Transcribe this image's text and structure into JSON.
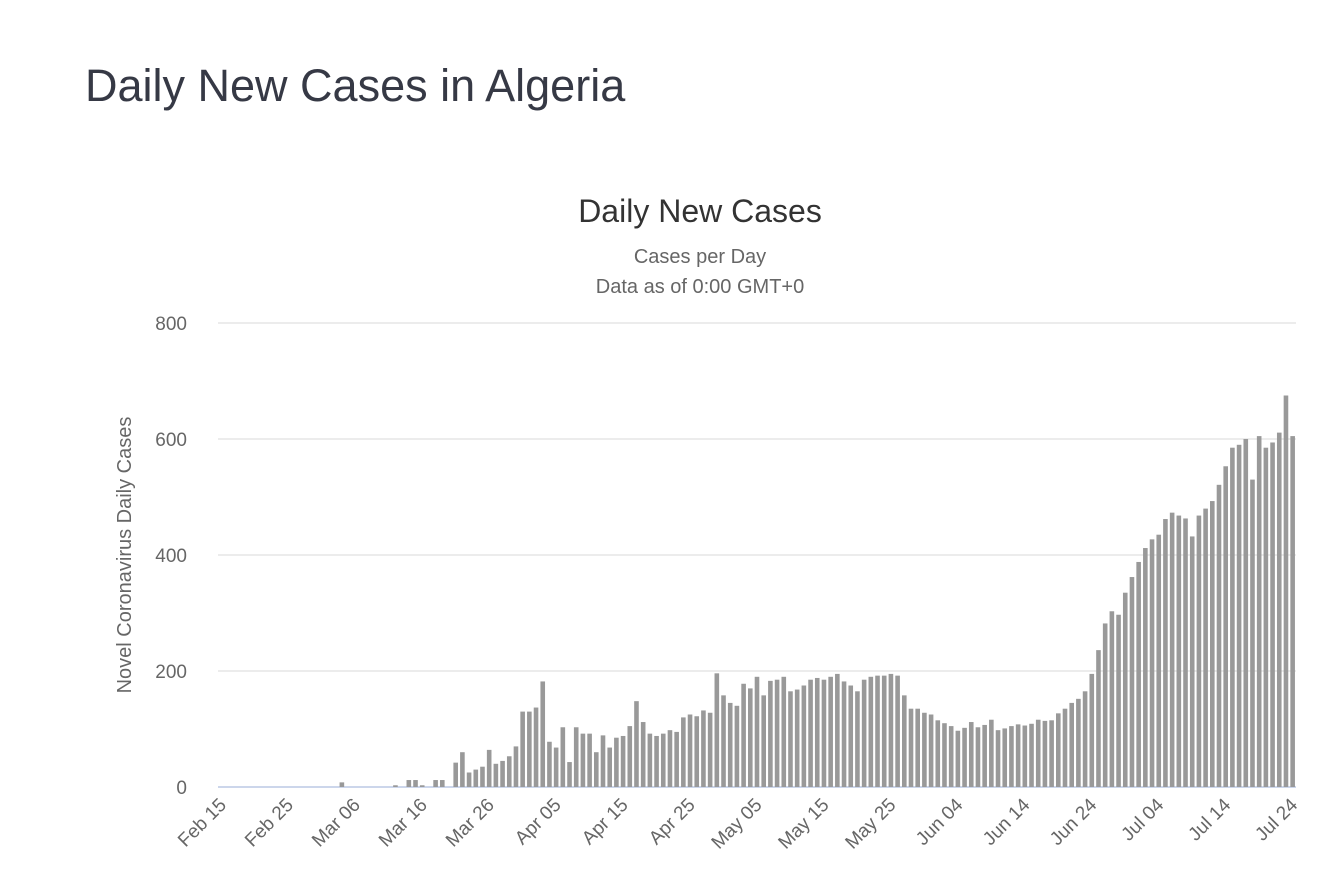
{
  "page_title": "Daily New Cases in Algeria",
  "chart_data": {
    "type": "bar",
    "title": "Daily New Cases",
    "subtitle": [
      "Cases per Day",
      "Data as of 0:00 GMT+0"
    ],
    "xlabel": "",
    "ylabel": "Novel Coronavirus Daily Cases",
    "ylim": [
      0,
      800
    ],
    "yticks": [
      0,
      200,
      400,
      600,
      800
    ],
    "start_date": "Feb 15",
    "xtick_labels": [
      "Feb 15",
      "Feb 25",
      "Mar 06",
      "Mar 16",
      "Mar 26",
      "Apr 05",
      "Apr 15",
      "Apr 25",
      "May 05",
      "May 15",
      "May 25",
      "Jun 04",
      "Jun 14",
      "Jun 24",
      "Jul 04",
      "Jul 14",
      "Jul 24"
    ],
    "xtick_every_days": 10,
    "grid": true,
    "bar_color": "#999999",
    "values": [
      0,
      0,
      0,
      0,
      0,
      0,
      0,
      0,
      0,
      0,
      0,
      0,
      0,
      0,
      0,
      0,
      0,
      0,
      8,
      0,
      0,
      0,
      0,
      0,
      0,
      0,
      3,
      0,
      12,
      12,
      3,
      0,
      12,
      12,
      0,
      42,
      60,
      25,
      30,
      35,
      64,
      40,
      45,
      53,
      70,
      130,
      130,
      137,
      182,
      78,
      68,
      103,
      43,
      103,
      92,
      92,
      60,
      89,
      68,
      85,
      88,
      105,
      148,
      112,
      92,
      88,
      92,
      98,
      95,
      120,
      125,
      122,
      132,
      128,
      196,
      158,
      145,
      140,
      178,
      170,
      190,
      158,
      183,
      185,
      190,
      165,
      168,
      175,
      185,
      188,
      185,
      190,
      195,
      182,
      175,
      165,
      185,
      190,
      192,
      192,
      195,
      192,
      158,
      135,
      135,
      128,
      125,
      115,
      110,
      105,
      97,
      102,
      112,
      103,
      107,
      116,
      98,
      101,
      105,
      108,
      106,
      109,
      116,
      114,
      115,
      127,
      135,
      145,
      152,
      165,
      195,
      236,
      282,
      303,
      297,
      335,
      362,
      388,
      412,
      427,
      435,
      462,
      473,
      468,
      463,
      432,
      468,
      480,
      493,
      521,
      553,
      585,
      590,
      600,
      530,
      605,
      585,
      594,
      611,
      675,
      605
    ]
  }
}
